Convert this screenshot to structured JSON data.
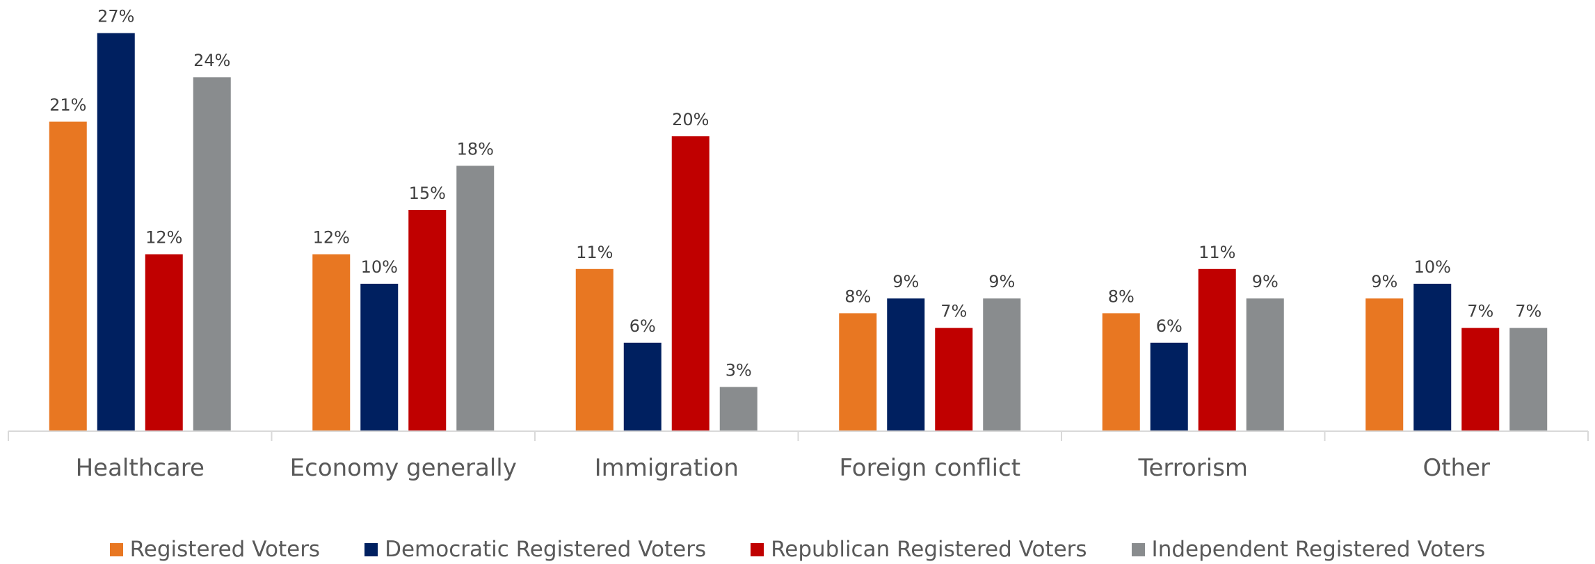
{
  "chart_data": {
    "type": "bar",
    "categories": [
      "Healthcare",
      "Economy generally",
      "Immigration",
      "Foreign conflict",
      "Terrorism",
      "Other"
    ],
    "series": [
      {
        "name": "Registered Voters",
        "color": "#E87722",
        "values": [
          21,
          12,
          11,
          8,
          8,
          9
        ]
      },
      {
        "name": "Democratic Registered Voters",
        "color": "#002060",
        "values": [
          27,
          10,
          6,
          9,
          6,
          10
        ]
      },
      {
        "name": "Republican Registered Voters",
        "color": "#C00000",
        "values": [
          12,
          15,
          20,
          7,
          11,
          7
        ]
      },
      {
        "name": "Independent Registered Voters",
        "color": "#898C8E",
        "values": [
          24,
          18,
          3,
          9,
          9,
          7
        ]
      }
    ],
    "value_suffix": "%",
    "ylim": [
      0,
      28
    ],
    "grid": false,
    "legend_position": "bottom",
    "data_labels": true
  }
}
